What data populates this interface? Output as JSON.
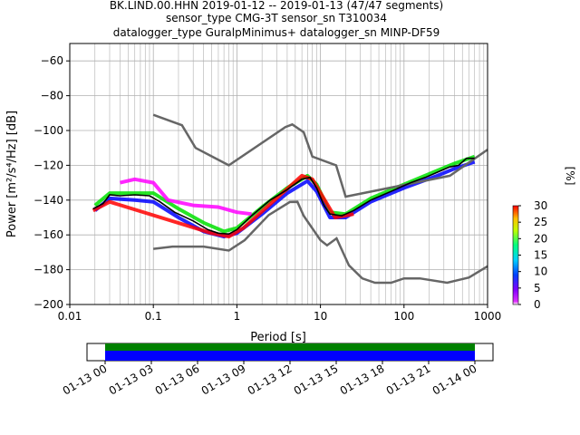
{
  "title": {
    "line1": "BK.LIND.00.HHN   2019-01-12 -- 2019-01-13  (47/47 segments)",
    "line2": "sensor_type CMG-3T sensor_sn T310034",
    "line3": "datalogger_type GuralpMinimus+ datalogger_sn MINP-DF59"
  },
  "chart_data": {
    "type": "heatmap",
    "x_scale": "log",
    "xlabel": "Period [s]",
    "ylabel": "Power [m²/s⁴/Hz] [dB]",
    "xlim": [
      0.01,
      1000
    ],
    "ylim": [
      -200,
      -50
    ],
    "x_ticks": [
      {
        "value": 0.01,
        "label": "0.01"
      },
      {
        "value": 0.1,
        "label": "0.1"
      },
      {
        "value": 1,
        "label": "1"
      },
      {
        "value": 10,
        "label": "10"
      },
      {
        "value": 100,
        "label": "100"
      },
      {
        "value": 1000,
        "label": "1000"
      }
    ],
    "y_ticks": [
      -60,
      -80,
      -100,
      -120,
      -140,
      -160,
      -180,
      -200
    ],
    "grid": true,
    "colorbar": {
      "label": "[%]",
      "ticks": [
        0,
        5,
        10,
        15,
        20,
        25,
        30
      ],
      "range": [
        0,
        30
      ]
    },
    "high_noise_model": [
      [
        0.1,
        -91
      ],
      [
        0.22,
        -97
      ],
      [
        0.32,
        -110
      ],
      [
        0.8,
        -120
      ],
      [
        3.8,
        -98
      ],
      [
        4.6,
        -96.5
      ],
      [
        6.3,
        -101
      ],
      [
        8,
        -115
      ],
      [
        15.4,
        -120
      ],
      [
        20,
        -138
      ],
      [
        354.8,
        -126
      ],
      [
        1000,
        -111
      ]
    ],
    "low_noise_model": [
      [
        0.1,
        -168
      ],
      [
        0.17,
        -166.7
      ],
      [
        0.4,
        -166.7
      ],
      [
        0.8,
        -169
      ],
      [
        1.24,
        -163
      ],
      [
        2.4,
        -148.6
      ],
      [
        4.3,
        -141.1
      ],
      [
        5.3,
        -141
      ],
      [
        6.3,
        -149
      ],
      [
        10,
        -163
      ],
      [
        12,
        -166
      ],
      [
        15.6,
        -162
      ],
      [
        21.9,
        -177.5
      ],
      [
        31.6,
        -185
      ],
      [
        45,
        -187.5
      ],
      [
        70,
        -187.5
      ],
      [
        100,
        -185
      ],
      [
        154.5,
        -185
      ],
      [
        328.4,
        -187.5
      ],
      [
        600,
        -184.5
      ],
      [
        1000,
        -178
      ]
    ],
    "mean_psd": [
      [
        0.019,
        -145
      ],
      [
        0.025,
        -142
      ],
      [
        0.03,
        -137
      ],
      [
        0.04,
        -137.5
      ],
      [
        0.06,
        -137
      ],
      [
        0.09,
        -137.5
      ],
      [
        0.12,
        -141
      ],
      [
        0.18,
        -147
      ],
      [
        0.3,
        -152
      ],
      [
        0.45,
        -157
      ],
      [
        0.6,
        -159
      ],
      [
        0.8,
        -159.5
      ],
      [
        1.0,
        -157
      ],
      [
        1.5,
        -149
      ],
      [
        2.5,
        -140
      ],
      [
        4,
        -134
      ],
      [
        6,
        -128
      ],
      [
        7.5,
        -127
      ],
      [
        9,
        -133
      ],
      [
        11,
        -143
      ],
      [
        13,
        -148
      ],
      [
        18,
        -149
      ],
      [
        25,
        -146
      ],
      [
        40,
        -140
      ],
      [
        70,
        -135
      ],
      [
        120,
        -130
      ],
      [
        180,
        -127
      ],
      [
        250,
        -124
      ],
      [
        350,
        -121
      ],
      [
        450,
        -120
      ],
      [
        560,
        -116
      ],
      [
        700,
        -116
      ]
    ],
    "band_series": [
      {
        "color": "#00e000",
        "points": [
          [
            0.02,
            -143
          ],
          [
            0.03,
            -136
          ],
          [
            0.06,
            -136
          ],
          [
            0.1,
            -136
          ],
          [
            0.2,
            -145
          ],
          [
            0.4,
            -153
          ],
          [
            0.7,
            -158
          ],
          [
            1,
            -156
          ],
          [
            2,
            -144
          ],
          [
            4,
            -133
          ],
          [
            7,
            -126
          ],
          [
            9,
            -131
          ],
          [
            13,
            -147
          ],
          [
            20,
            -148
          ],
          [
            40,
            -139
          ],
          [
            100,
            -131
          ],
          [
            250,
            -123
          ],
          [
            400,
            -119
          ],
          [
            700,
            -115
          ]
        ]
      },
      {
        "color": "#0000ff",
        "points": [
          [
            0.02,
            -146
          ],
          [
            0.03,
            -139
          ],
          [
            0.06,
            -140
          ],
          [
            0.1,
            -141
          ],
          [
            0.2,
            -150
          ],
          [
            0.4,
            -158
          ],
          [
            0.7,
            -161
          ],
          [
            1,
            -159
          ],
          [
            2,
            -148
          ],
          [
            4,
            -136
          ],
          [
            7,
            -129
          ],
          [
            9,
            -135
          ],
          [
            13,
            -150
          ],
          [
            20,
            -150
          ],
          [
            40,
            -141
          ],
          [
            100,
            -133
          ],
          [
            250,
            -126
          ],
          [
            400,
            -122
          ],
          [
            700,
            -118
          ]
        ]
      },
      {
        "color": "#ff00ff",
        "points": [
          [
            0.04,
            -130
          ],
          [
            0.06,
            -128
          ],
          [
            0.1,
            -130
          ],
          [
            0.15,
            -140
          ],
          [
            0.3,
            -143
          ],
          [
            0.6,
            -144
          ],
          [
            1,
            -147
          ],
          [
            1.5,
            -148
          ]
        ]
      },
      {
        "color": "#ff0000",
        "points": [
          [
            0.019,
            -146
          ],
          [
            0.03,
            -141
          ],
          [
            0.5,
            -159
          ],
          [
            0.8,
            -161
          ],
          [
            1.2,
            -156
          ],
          [
            6,
            -126
          ],
          [
            8,
            -128
          ],
          [
            15,
            -150
          ],
          [
            25,
            -148
          ]
        ]
      }
    ],
    "time_axis": {
      "tick_labels": [
        "01-13 00",
        "01-13 03",
        "01-13 06",
        "01-13 09",
        "01-13 12",
        "01-13 15",
        "01-13 18",
        "01-13 21",
        "01-14 00"
      ],
      "bar_colors": {
        "top": "#008000",
        "bottom": "#0000ff"
      }
    }
  }
}
